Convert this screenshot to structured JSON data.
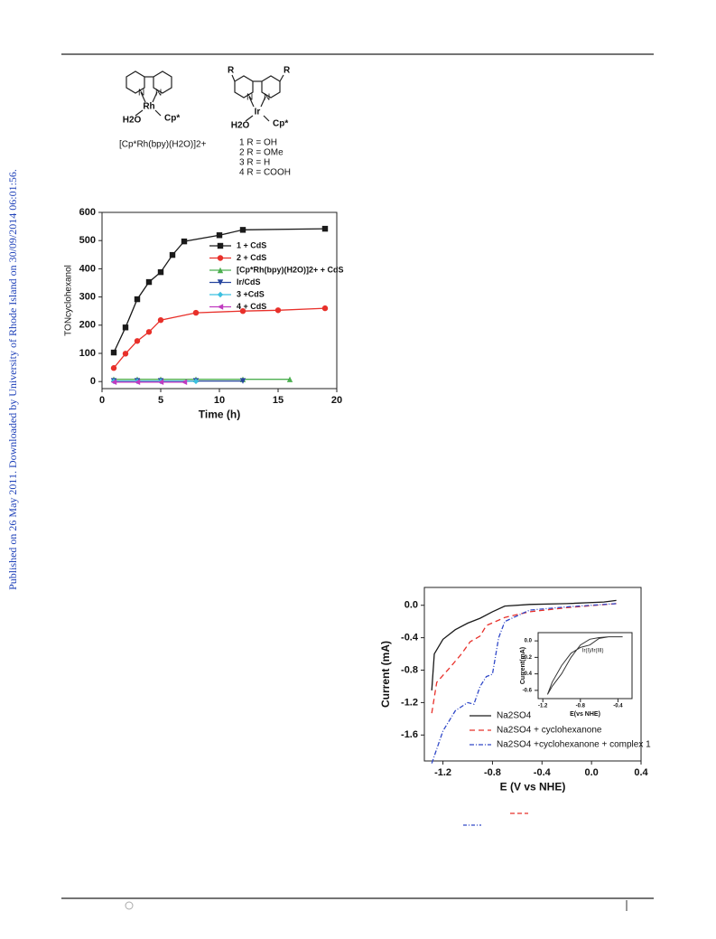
{
  "watermark": "Published on 26 May 2011. Downloaded by University of Rhode Island on 30/09/2014 06:01:56.",
  "scheme": {
    "rh_complex": {
      "n1": "N",
      "n2": "N",
      "metal": "Rh",
      "water": "H2O",
      "cp": "Cp*",
      "name": "[Cp*Rh(bpy)(H2O)]2+"
    },
    "ir_complex": {
      "r1": "R",
      "r2": "R",
      "n1": "N",
      "n2": "N",
      "metal": "Ir",
      "water": "H2O",
      "cp": "Cp*",
      "variants": [
        "1  R = OH",
        "2  R = OMe",
        "3  R = H",
        "4  R = COOH"
      ]
    }
  },
  "chart_data": [
    {
      "type": "line",
      "x_label": "Time (h)",
      "y_label": "TONcyclohexanol",
      "xlim": [
        0,
        20
      ],
      "ylim": [
        -25,
        600
      ],
      "xticks": [
        0,
        5,
        10,
        15,
        20
      ],
      "yticks": [
        0,
        100,
        200,
        300,
        400,
        500,
        600
      ],
      "legend": "upper right",
      "series": [
        {
          "name": "1 + CdS",
          "color": "#1a1a1a",
          "marker": "square",
          "x": [
            1,
            2,
            3,
            4,
            5,
            6,
            7,
            10,
            12,
            19
          ],
          "values": [
            103,
            192,
            292,
            353,
            388,
            449,
            497,
            519,
            538,
            542
          ]
        },
        {
          "name": "2 + CdS",
          "color": "#e8302a",
          "marker": "circle",
          "x": [
            1,
            2,
            3,
            4,
            5,
            8,
            12,
            15,
            19
          ],
          "values": [
            48,
            99,
            144,
            176,
            218,
            244,
            250,
            253,
            260
          ]
        },
        {
          "name": "[Cp*Rh(bpy)(H2O)]2+ + CdS",
          "color": "#4caf50",
          "marker": "triangle",
          "x": [
            1,
            3,
            5,
            8,
            12,
            16
          ],
          "values": [
            8,
            8,
            8,
            8,
            8,
            8
          ]
        },
        {
          "name": "Ir/CdS",
          "color": "#27459e",
          "marker": "triangle-down",
          "x": [
            1,
            3,
            5,
            8,
            12
          ],
          "values": [
            2,
            2,
            2,
            2,
            2
          ]
        },
        {
          "name": "3 +CdS",
          "color": "#3cc0e0",
          "marker": "diamond",
          "x": [
            1,
            3,
            5,
            8
          ],
          "values": [
            1,
            1,
            1,
            1
          ]
        },
        {
          "name": "4 + CdS",
          "color": "#c03ac0",
          "marker": "triangle-left",
          "x": [
            1,
            3,
            5,
            7
          ],
          "values": [
            -2,
            -2,
            -2,
            -2
          ]
        }
      ]
    },
    {
      "type": "line",
      "x_label": "E (V vs NHE)",
      "y_label": "Current (mA)",
      "xlim": [
        -1.35,
        0.4
      ],
      "ylim": [
        -1.92,
        0.22
      ],
      "xticks": [
        -1.2,
        -0.8,
        -0.4,
        {
          "value": 0,
          "label": "0.0"
        },
        0.4
      ],
      "yticks": [
        {
          "value": 0,
          "label": "0.0"
        },
        -0.4,
        -0.8,
        -1.2,
        -1.6
      ],
      "legend": "lower right",
      "series": [
        {
          "name": "Na2SO4",
          "color": "#1a1a1a",
          "dash": "solid",
          "x": [
            -1.29,
            -1.27,
            -1.2,
            -1.1,
            -1.0,
            -0.9,
            -0.8,
            -0.7,
            -0.5,
            -0.2,
            0.1,
            0.2
          ],
          "values": [
            -1.05,
            -0.6,
            -0.42,
            -0.3,
            -0.22,
            -0.16,
            -0.08,
            -0.01,
            0.01,
            0.02,
            0.04,
            0.06
          ]
        },
        {
          "name": "Na2SO4 + cyclohexanone",
          "color": "#e8302a",
          "dash": "dashed",
          "x": [
            -1.29,
            -1.25,
            -1.15,
            -1.05,
            -0.98,
            -0.9,
            -0.85,
            -0.7,
            -0.5,
            -0.2,
            0.2
          ],
          "values": [
            -1.33,
            -0.95,
            -0.78,
            -0.6,
            -0.45,
            -0.38,
            -0.25,
            -0.15,
            -0.08,
            -0.03,
            0.02
          ]
        },
        {
          "name": "Na2SO4 +cyclohexanone + complex 1",
          "color": "#3048c8",
          "dash": "dashdot",
          "x": [
            -1.29,
            -1.2,
            -1.1,
            -1.0,
            -0.95,
            -0.9,
            -0.85,
            -0.8,
            -0.75,
            -0.7,
            -0.5,
            -0.2,
            0.2
          ],
          "values": [
            -1.95,
            -1.55,
            -1.3,
            -1.2,
            -1.22,
            -1.0,
            -0.88,
            -0.85,
            -0.4,
            -0.2,
            -0.06,
            -0.02,
            0.02
          ]
        }
      ]
    },
    {
      "type": "line",
      "x_label": "E(vs NHE)",
      "y_label": "Current(mA)",
      "annotation": "Ir(I)/Ir(III)",
      "xlim": [
        -1.25,
        -0.25
      ],
      "ylim": [
        -0.7,
        0.1
      ],
      "xticks": [
        -1.2,
        -0.8,
        -0.4
      ],
      "yticks": [
        {
          "value": 0,
          "label": "0.0"
        },
        -0.2,
        -0.4,
        -0.6
      ],
      "series": [
        {
          "color": "#333333",
          "dash": "solid",
          "x": [
            -0.35,
            -0.5,
            -0.6,
            -0.7,
            -0.8,
            -0.9,
            -1.0,
            -1.1,
            -1.15,
            -1.1,
            -1.0,
            -0.9,
            -0.8,
            -0.7,
            -0.6,
            -0.5,
            -0.35
          ],
          "values": [
            0.05,
            0.05,
            0.03,
            -0.05,
            -0.08,
            -0.15,
            -0.3,
            -0.5,
            -0.65,
            -0.55,
            -0.4,
            -0.2,
            -0.05,
            0.02,
            0.04,
            0.05,
            0.05
          ]
        }
      ]
    }
  ]
}
